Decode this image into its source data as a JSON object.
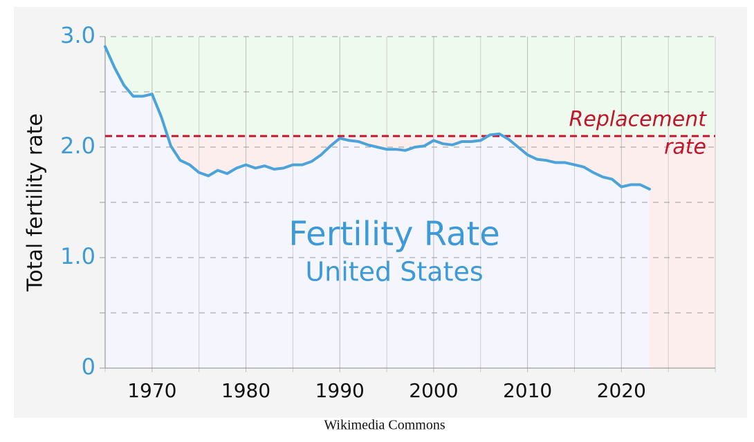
{
  "chart_data": {
    "type": "line",
    "title": "Fertility Rate",
    "subtitle": "United States",
    "y_label": "Total fertility rate",
    "source": "Wikimedia Commons",
    "x": [
      1965,
      1966,
      1967,
      1968,
      1969,
      1970,
      1971,
      1972,
      1973,
      1974,
      1975,
      1976,
      1977,
      1978,
      1979,
      1980,
      1981,
      1982,
      1983,
      1984,
      1985,
      1986,
      1987,
      1988,
      1989,
      1990,
      1991,
      1992,
      1993,
      1994,
      1995,
      1996,
      1997,
      1998,
      1999,
      2000,
      2001,
      2002,
      2003,
      2004,
      2005,
      2006,
      2007,
      2008,
      2009,
      2010,
      2011,
      2012,
      2013,
      2014,
      2015,
      2016,
      2017,
      2018,
      2019,
      2020,
      2021,
      2022,
      2023
    ],
    "values": [
      2.91,
      2.72,
      2.56,
      2.46,
      2.46,
      2.48,
      2.27,
      2.01,
      1.88,
      1.84,
      1.77,
      1.74,
      1.79,
      1.76,
      1.81,
      1.84,
      1.81,
      1.83,
      1.8,
      1.81,
      1.84,
      1.84,
      1.87,
      1.93,
      2.01,
      2.08,
      2.06,
      2.05,
      2.02,
      2.0,
      1.98,
      1.98,
      1.97,
      2.0,
      2.01,
      2.06,
      2.03,
      2.02,
      2.05,
      2.05,
      2.06,
      2.11,
      2.12,
      2.07,
      2.0,
      1.93,
      1.89,
      1.88,
      1.86,
      1.86,
      1.84,
      1.82,
      1.77,
      1.73,
      1.71,
      1.64,
      1.66,
      1.66,
      1.62
    ],
    "color": "#4ba3d9",
    "xlim": [
      1965,
      2030
    ],
    "xticks": [
      1970,
      1980,
      1990,
      2000,
      2010,
      2020
    ],
    "minor_xticks": [
      1965,
      1975,
      1985,
      1995,
      2005,
      2015,
      2025,
      2030
    ],
    "ylim": [
      0,
      3
    ],
    "yticks": [
      0,
      {
        "value": 1,
        "label": "1.0"
      },
      {
        "value": 2,
        "label": "2.0"
      },
      {
        "value": 3,
        "label": "3.0"
      }
    ],
    "minor_yticks": [
      0.5,
      1.5,
      2.5
    ],
    "reference_line": {
      "value": 2.1,
      "label_line1": "Replacement",
      "label_line2": "rate",
      "color": "#c0152a"
    },
    "grid": true
  }
}
